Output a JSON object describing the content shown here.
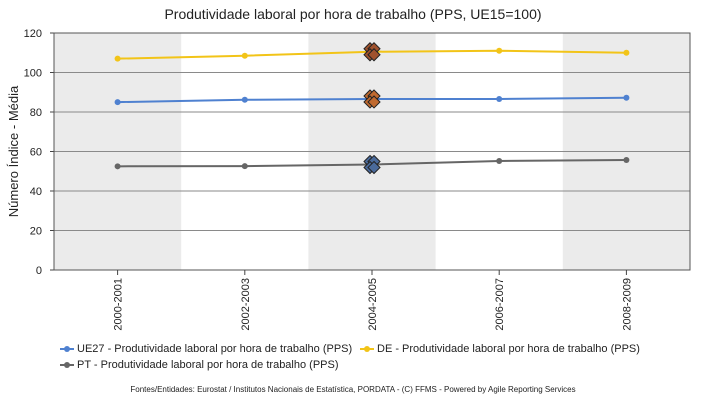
{
  "chart_data": {
    "type": "line",
    "title": "Produtividade laboral por hora de trabalho (PPS, UE15=100)",
    "xlabel": "",
    "ylabel": "Número Índice - Média",
    "ylim": [
      0,
      120
    ],
    "yticks": [
      0,
      20,
      40,
      60,
      80,
      100,
      120
    ],
    "categories": [
      "2000-2001",
      "2002-2003",
      "2004-2005",
      "2006-2007",
      "2008-2009"
    ],
    "highlight_index": 2,
    "series": [
      {
        "name": "UE27 - Produtividade laboral por hora de trabalho  (PPS)",
        "color": "#4f81d0",
        "values": [
          85.0,
          86.2,
          86.6,
          86.6,
          87.2
        ]
      },
      {
        "name": "DE - Produtividade laboral por hora de trabalho  (PPS)",
        "color": "#f2c418",
        "values": [
          107.0,
          108.5,
          110.5,
          111.0,
          110.0
        ]
      },
      {
        "name": "PT - Produtividade laboral por hora de trabalho  (PPS)",
        "color": "#666666",
        "values": [
          52.5,
          52.6,
          53.4,
          55.2,
          55.7
        ]
      }
    ],
    "source": "Fontes/Entidades: Eurostat / Institutos Nacionais de Estatística, PORDATA - (C) FFMS - Powered by Agile Reporting Services"
  }
}
